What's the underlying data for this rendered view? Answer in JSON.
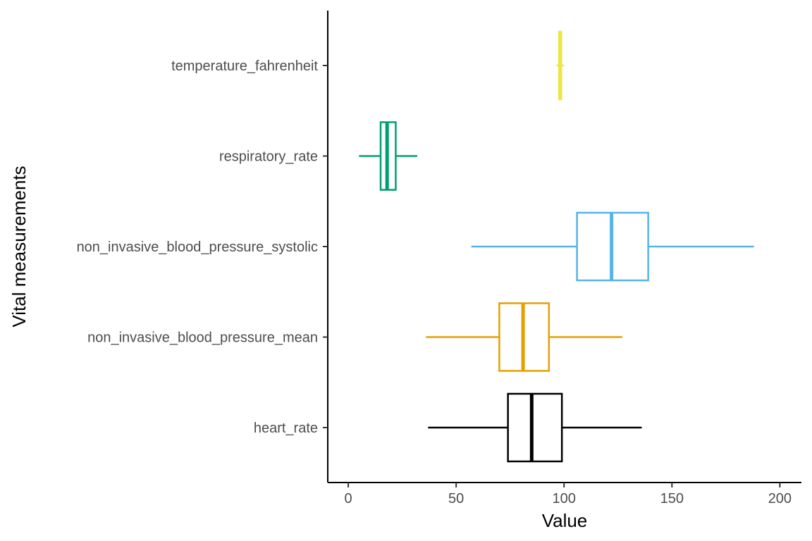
{
  "chart_data": {
    "type": "boxplot",
    "orientation": "horizontal",
    "xlabel": "Value",
    "ylabel": "Vital measurements",
    "xlim": [
      -9.5,
      210
    ],
    "x_ticks": [
      0,
      50,
      100,
      150,
      200
    ],
    "grid": false,
    "legend": "none",
    "categories": [
      "heart_rate",
      "non_invasive_blood_pressure_mean",
      "non_invasive_blood_pressure_systolic",
      "respiratory_rate",
      "temperature_fahrenheit"
    ],
    "series": [
      {
        "category": "heart_rate",
        "color": "#000000",
        "whisker_low": 37,
        "q1": 74,
        "median": 85,
        "q3": 99,
        "whisker_high": 136
      },
      {
        "category": "non_invasive_blood_pressure_mean",
        "color": "#E69F00",
        "whisker_low": 36,
        "q1": 70,
        "median": 81,
        "q3": 93,
        "whisker_high": 127
      },
      {
        "category": "non_invasive_blood_pressure_systolic",
        "color": "#56B4E9",
        "whisker_low": 57,
        "q1": 106,
        "median": 122,
        "q3": 139,
        "whisker_high": 188
      },
      {
        "category": "respiratory_rate",
        "color": "#009E73",
        "whisker_low": 5,
        "q1": 15,
        "median": 18,
        "q3": 22,
        "whisker_high": 32
      },
      {
        "category": "temperature_fahrenheit",
        "color": "#F0E442",
        "whisker_low": 96.5,
        "q1": 97.7,
        "median": 98.2,
        "q3": 98.7,
        "whisker_high": 100
      }
    ]
  }
}
